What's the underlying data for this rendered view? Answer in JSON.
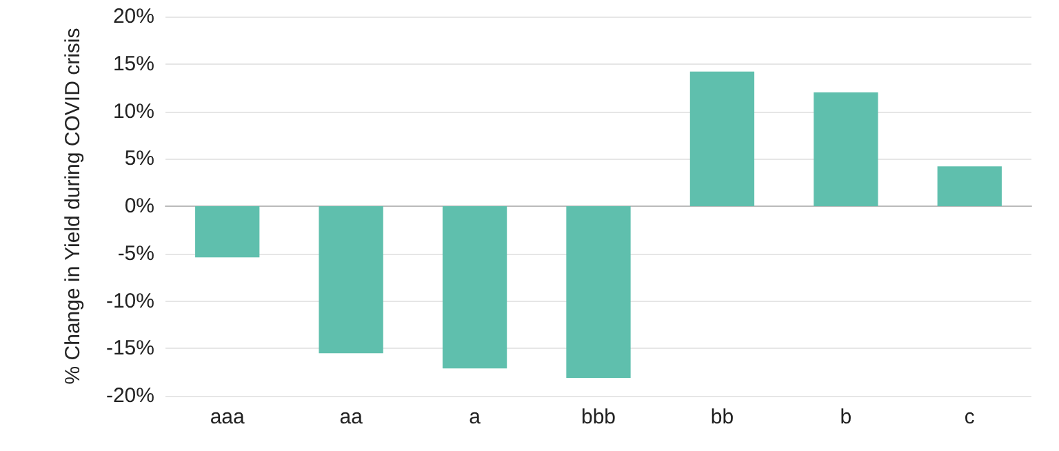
{
  "chart_data": {
    "type": "bar",
    "ylabel": "% Change in Yield during COVID crisis",
    "categories": [
      "aaa",
      "aa",
      "a",
      "bbb",
      "bb",
      "b",
      "c"
    ],
    "values": [
      -5.4,
      -15.5,
      -17.1,
      -18.1,
      14.2,
      12.0,
      4.2
    ],
    "color": "#5fbfad",
    "ylim": [
      -20,
      20
    ],
    "yticks": [
      {
        "value": -20,
        "label": "-20%"
      },
      {
        "value": -15,
        "label": "-15%"
      },
      {
        "value": -10,
        "label": "-10%"
      },
      {
        "value": -5,
        "label": "-5%"
      },
      {
        "value": 0,
        "label": "0%"
      },
      {
        "value": 5,
        "label": "5%"
      },
      {
        "value": 10,
        "label": "10%"
      },
      {
        "value": 15,
        "label": "15%"
      },
      {
        "value": 20,
        "label": "20%"
      }
    ],
    "grid": true
  }
}
